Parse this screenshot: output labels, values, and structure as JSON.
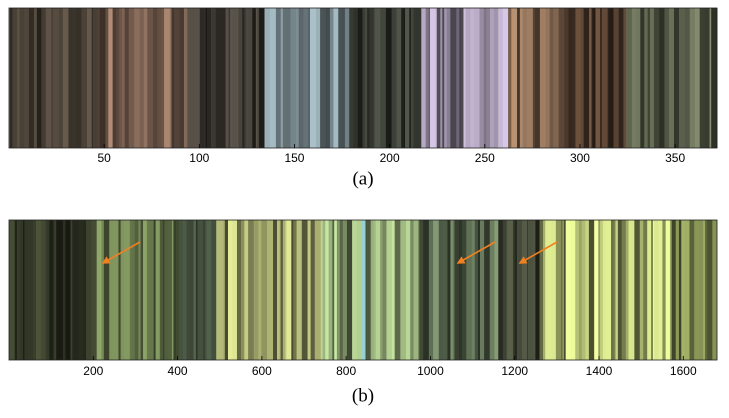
{
  "chart_data": [
    {
      "type": "barcode",
      "caption": "(a)",
      "xlim": [
        0,
        372
      ],
      "xticks": [
        50,
        100,
        150,
        200,
        250,
        300,
        350
      ]
    },
    {
      "type": "barcode",
      "caption": "(b)",
      "xlim": [
        0,
        1680
      ],
      "xticks": [
        200,
        400,
        600,
        800,
        1000,
        1200,
        1400,
        1600
      ]
    }
  ]
}
